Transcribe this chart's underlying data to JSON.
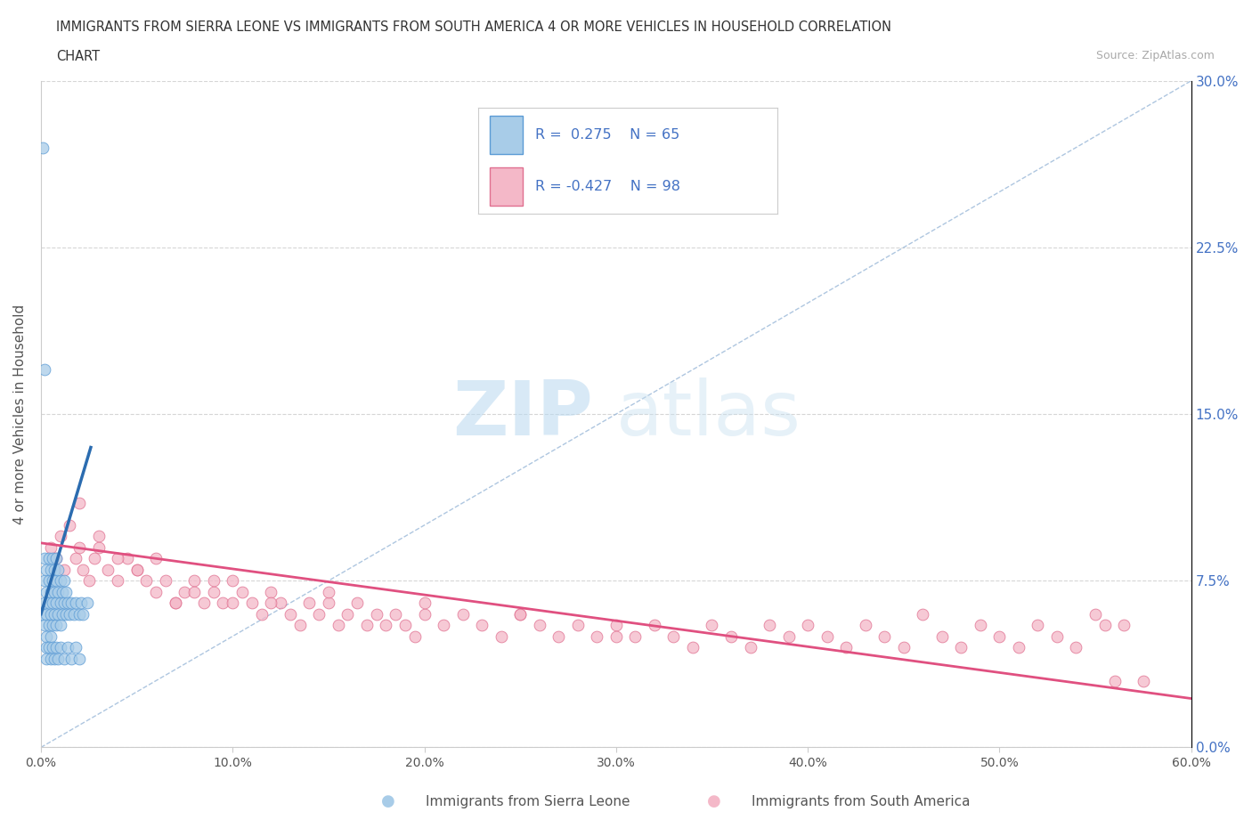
{
  "title_line1": "IMMIGRANTS FROM SIERRA LEONE VS IMMIGRANTS FROM SOUTH AMERICA 4 OR MORE VEHICLES IN HOUSEHOLD CORRELATION",
  "title_line2": "CHART",
  "source_text": "Source: ZipAtlas.com",
  "watermark_zip": "ZIP",
  "watermark_atlas": "atlas",
  "ylabel": "4 or more Vehicles in Household",
  "xlim": [
    0.0,
    0.6
  ],
  "ylim": [
    0.0,
    0.3
  ],
  "xticks": [
    0.0,
    0.1,
    0.2,
    0.3,
    0.4,
    0.5,
    0.6
  ],
  "xticklabels": [
    "0.0%",
    "10.0%",
    "20.0%",
    "30.0%",
    "40.0%",
    "50.0%",
    "60.0%"
  ],
  "yticks": [
    0.0,
    0.075,
    0.15,
    0.225,
    0.3
  ],
  "yticklabels_right": [
    "0.0%",
    "7.5%",
    "15.0%",
    "22.5%",
    "30.0%"
  ],
  "blue_color": "#a8cce8",
  "blue_edge": "#5b9bd5",
  "pink_color": "#f4b8c8",
  "pink_edge": "#e07090",
  "line_blue": "#2b6cb0",
  "line_pink": "#e05080",
  "diag_color": "#9ab8d8",
  "bg_color": "#ffffff",
  "grid_color": "#cccccc",
  "right_tick_color": "#4472c4",
  "legend_label1": "Immigrants from Sierra Leone",
  "legend_label2": "Immigrants from South America",
  "blue_scatter_x": [
    0.001,
    0.001,
    0.002,
    0.002,
    0.002,
    0.002,
    0.003,
    0.003,
    0.003,
    0.003,
    0.004,
    0.004,
    0.004,
    0.004,
    0.005,
    0.005,
    0.005,
    0.005,
    0.006,
    0.006,
    0.006,
    0.006,
    0.007,
    0.007,
    0.007,
    0.008,
    0.008,
    0.008,
    0.008,
    0.009,
    0.009,
    0.009,
    0.01,
    0.01,
    0.01,
    0.011,
    0.011,
    0.012,
    0.012,
    0.013,
    0.013,
    0.014,
    0.015,
    0.016,
    0.017,
    0.018,
    0.02,
    0.021,
    0.022,
    0.024,
    0.003,
    0.003,
    0.004,
    0.005,
    0.006,
    0.007,
    0.008,
    0.009,
    0.01,
    0.012,
    0.014,
    0.016,
    0.018,
    0.02,
    0.002
  ],
  "blue_scatter_y": [
    0.27,
    0.06,
    0.065,
    0.055,
    0.075,
    0.085,
    0.06,
    0.07,
    0.08,
    0.05,
    0.065,
    0.075,
    0.055,
    0.085,
    0.06,
    0.07,
    0.08,
    0.05,
    0.065,
    0.075,
    0.055,
    0.085,
    0.06,
    0.07,
    0.08,
    0.065,
    0.075,
    0.055,
    0.085,
    0.06,
    0.07,
    0.08,
    0.065,
    0.075,
    0.055,
    0.06,
    0.07,
    0.065,
    0.075,
    0.06,
    0.07,
    0.065,
    0.06,
    0.065,
    0.06,
    0.065,
    0.06,
    0.065,
    0.06,
    0.065,
    0.045,
    0.04,
    0.045,
    0.04,
    0.045,
    0.04,
    0.045,
    0.04,
    0.045,
    0.04,
    0.045,
    0.04,
    0.045,
    0.04,
    0.17
  ],
  "pink_scatter_x": [
    0.005,
    0.008,
    0.01,
    0.012,
    0.015,
    0.018,
    0.02,
    0.022,
    0.025,
    0.028,
    0.03,
    0.035,
    0.04,
    0.045,
    0.05,
    0.055,
    0.06,
    0.065,
    0.07,
    0.075,
    0.08,
    0.085,
    0.09,
    0.095,
    0.1,
    0.105,
    0.11,
    0.115,
    0.12,
    0.125,
    0.13,
    0.135,
    0.14,
    0.145,
    0.15,
    0.155,
    0.16,
    0.165,
    0.17,
    0.175,
    0.18,
    0.185,
    0.19,
    0.195,
    0.2,
    0.21,
    0.22,
    0.23,
    0.24,
    0.25,
    0.26,
    0.27,
    0.28,
    0.29,
    0.3,
    0.31,
    0.32,
    0.33,
    0.34,
    0.35,
    0.36,
    0.37,
    0.38,
    0.39,
    0.4,
    0.41,
    0.42,
    0.43,
    0.44,
    0.45,
    0.46,
    0.47,
    0.48,
    0.49,
    0.5,
    0.51,
    0.52,
    0.53,
    0.54,
    0.55,
    0.555,
    0.56,
    0.565,
    0.575,
    0.02,
    0.03,
    0.04,
    0.05,
    0.06,
    0.07,
    0.08,
    0.09,
    0.1,
    0.12,
    0.15,
    0.2,
    0.25,
    0.3
  ],
  "pink_scatter_y": [
    0.09,
    0.085,
    0.095,
    0.08,
    0.1,
    0.085,
    0.09,
    0.08,
    0.075,
    0.085,
    0.09,
    0.08,
    0.075,
    0.085,
    0.08,
    0.075,
    0.07,
    0.075,
    0.065,
    0.07,
    0.075,
    0.065,
    0.07,
    0.065,
    0.075,
    0.07,
    0.065,
    0.06,
    0.07,
    0.065,
    0.06,
    0.055,
    0.065,
    0.06,
    0.065,
    0.055,
    0.06,
    0.065,
    0.055,
    0.06,
    0.055,
    0.06,
    0.055,
    0.05,
    0.06,
    0.055,
    0.06,
    0.055,
    0.05,
    0.06,
    0.055,
    0.05,
    0.055,
    0.05,
    0.055,
    0.05,
    0.055,
    0.05,
    0.045,
    0.055,
    0.05,
    0.045,
    0.055,
    0.05,
    0.055,
    0.05,
    0.045,
    0.055,
    0.05,
    0.045,
    0.06,
    0.05,
    0.045,
    0.055,
    0.05,
    0.045,
    0.055,
    0.05,
    0.045,
    0.06,
    0.055,
    0.03,
    0.055,
    0.03,
    0.11,
    0.095,
    0.085,
    0.08,
    0.085,
    0.065,
    0.07,
    0.075,
    0.065,
    0.065,
    0.07,
    0.065,
    0.06,
    0.05
  ],
  "blue_trend_x": [
    0.0,
    0.026
  ],
  "blue_trend_y": [
    0.06,
    0.135
  ],
  "pink_trend_x": [
    0.0,
    0.6
  ],
  "pink_trend_y": [
    0.092,
    0.022
  ]
}
